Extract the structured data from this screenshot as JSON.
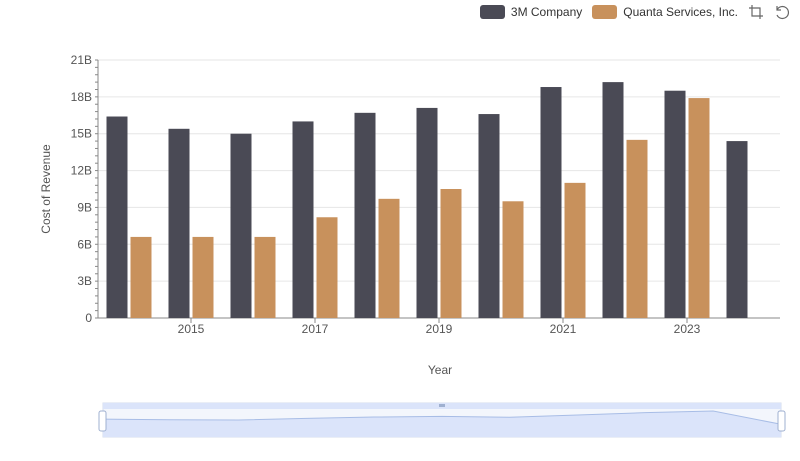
{
  "toolbox": {
    "zoom_icon": "data-zoom-icon",
    "reset_icon": "restore-icon"
  },
  "chart_data": {
    "type": "bar",
    "xlabel": "Year",
    "ylabel": "Cost of Revenue",
    "categories": [
      "2014",
      "2015",
      "2016",
      "2017",
      "2018",
      "2019",
      "2020",
      "2021",
      "2022",
      "2023",
      "2024"
    ],
    "x_tick_labels": [
      "2015",
      "2017",
      "2019",
      "2021",
      "2023"
    ],
    "y_tick_labels": [
      "0",
      "3B",
      "6B",
      "9B",
      "12B",
      "15B",
      "18B",
      "21B"
    ],
    "ylim": [
      0,
      21000000000
    ],
    "grid": true,
    "legend_position": "top-right",
    "series": [
      {
        "name": "3M Company",
        "color": "#4a4a55",
        "values": [
          16400000000,
          15400000000,
          15000000000,
          16000000000,
          16700000000,
          17100000000,
          16600000000,
          18800000000,
          19200000000,
          18500000000,
          14400000000
        ]
      },
      {
        "name": "Quanta Services, Inc.",
        "color": "#c8915c",
        "values": [
          6600000000,
          6600000000,
          6600000000,
          8200000000,
          9700000000,
          10500000000,
          9500000000,
          11000000000,
          14500000000,
          17900000000,
          null
        ]
      }
    ]
  }
}
